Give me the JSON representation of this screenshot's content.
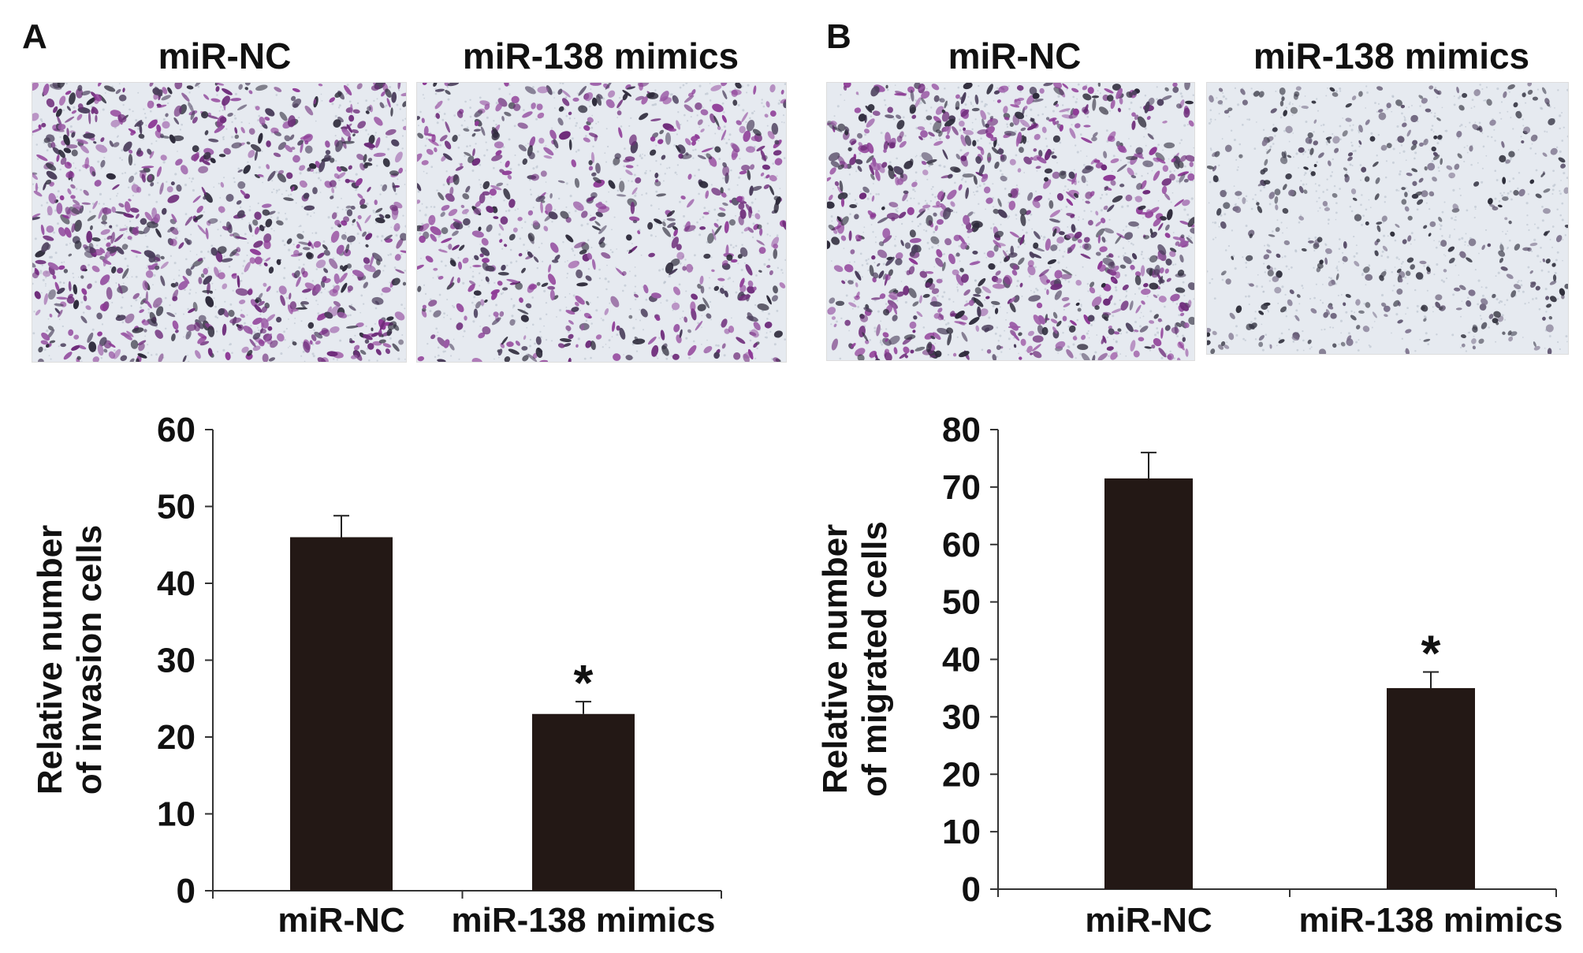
{
  "panels": [
    {
      "letter": "A",
      "images": [
        {
          "label": "miR-NC",
          "stain_color": "#8e3a96",
          "density": "high"
        },
        {
          "label": "miR-138 mimics",
          "stain_color": "#8e3a96",
          "density": "medium"
        }
      ]
    },
    {
      "letter": "B",
      "images": [
        {
          "label": "miR-NC",
          "stain_color": "#8e3a96",
          "density": "high"
        },
        {
          "label": "miR-138 mimics",
          "stain_color": "#4a4a5a",
          "density": "low"
        }
      ]
    }
  ],
  "chart_data": [
    {
      "type": "bar",
      "title": "",
      "categories": [
        "miR-NC",
        "miR-138 mimics"
      ],
      "values": [
        46,
        23
      ],
      "errors": [
        2.8,
        1.6
      ],
      "annotations": [
        "",
        "*"
      ],
      "xlabel": "",
      "ylabel_lines": [
        "Relative number",
        "of invasion cells"
      ],
      "ylim": [
        0,
        60
      ],
      "yticks": [
        0,
        10,
        20,
        30,
        40,
        50,
        60
      ],
      "bar_color": "#231815",
      "grid": false,
      "legend": "none"
    },
    {
      "type": "bar",
      "title": "",
      "categories": [
        "miR-NC",
        "miR-138 mimics"
      ],
      "values": [
        71.5,
        35
      ],
      "errors": [
        4.5,
        2.8
      ],
      "annotations": [
        "",
        "*"
      ],
      "xlabel": "",
      "ylabel_lines": [
        "Relative number",
        "of migrated cells"
      ],
      "ylim": [
        0,
        80
      ],
      "yticks": [
        0,
        10,
        20,
        30,
        40,
        50,
        60,
        70,
        80
      ],
      "bar_color": "#231815",
      "grid": false,
      "legend": "none"
    }
  ]
}
